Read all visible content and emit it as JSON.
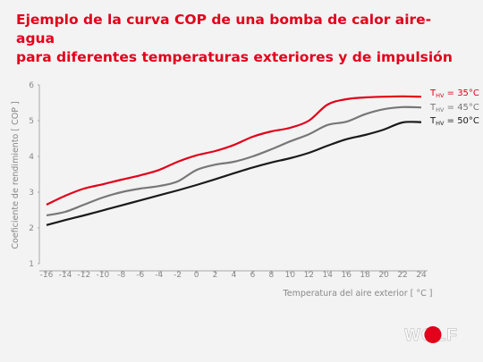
{
  "header": {
    "title_line1": "Ejemplo de la curva COP de una bomba de calor aire-agua",
    "title_line2": "para diferentes temperaturas exteriores y de impulsión"
  },
  "chart_data": {
    "type": "line",
    "xlabel": "Temperatura del aire exterior [ °C ]",
    "ylabel": "Coeficiente de rendimiento [ COP ]",
    "x": [
      -16,
      -14,
      -12,
      -10,
      -8,
      -6,
      -4,
      -2,
      0,
      2,
      4,
      6,
      8,
      10,
      12,
      14,
      16,
      18,
      20,
      22,
      24
    ],
    "xticks": [
      "-16",
      "-14",
      "-12",
      "-10",
      "-8",
      "-6",
      "-4",
      "-2",
      "0",
      "2",
      "4",
      "6",
      "8",
      "10",
      "12",
      "14",
      "16",
      "18",
      "20",
      "22",
      "24"
    ],
    "yticks": [
      "1",
      "2",
      "3",
      "4",
      "5",
      "6"
    ],
    "xlim": [
      -16,
      24
    ],
    "ylim": [
      1,
      6
    ],
    "grid": false,
    "legend": "right",
    "series": [
      {
        "name": "THV = 35°C",
        "label_main": "T",
        "label_sub": "HV",
        "label_rest": " = 35°C",
        "color": "#e2001a",
        "values": [
          2.65,
          2.9,
          3.1,
          3.22,
          3.35,
          3.47,
          3.62,
          3.85,
          4.03,
          4.15,
          4.32,
          4.55,
          4.7,
          4.8,
          5.0,
          5.45,
          5.6,
          5.65,
          5.67,
          5.68,
          5.67
        ]
      },
      {
        "name": "THV = 45°C",
        "label_main": "T",
        "label_sub": "HV",
        "label_rest": " = 45°C",
        "color": "#777777",
        "values": [
          2.35,
          2.45,
          2.65,
          2.85,
          3.0,
          3.1,
          3.17,
          3.3,
          3.62,
          3.77,
          3.85,
          4.0,
          4.2,
          4.42,
          4.62,
          4.88,
          4.97,
          5.18,
          5.32,
          5.38,
          5.37
        ]
      },
      {
        "name": "THV = 50°C",
        "label_main": "T",
        "label_sub": "HV",
        "label_rest": " = 50°C",
        "color": "#1a1a1a",
        "values": [
          2.08,
          2.22,
          2.35,
          2.49,
          2.63,
          2.77,
          2.91,
          3.05,
          3.2,
          3.36,
          3.53,
          3.69,
          3.83,
          3.95,
          4.1,
          4.3,
          4.48,
          4.6,
          4.75,
          4.95,
          4.96
        ]
      }
    ]
  },
  "logo": {
    "text": "WOLF",
    "color": "#e2001a"
  }
}
